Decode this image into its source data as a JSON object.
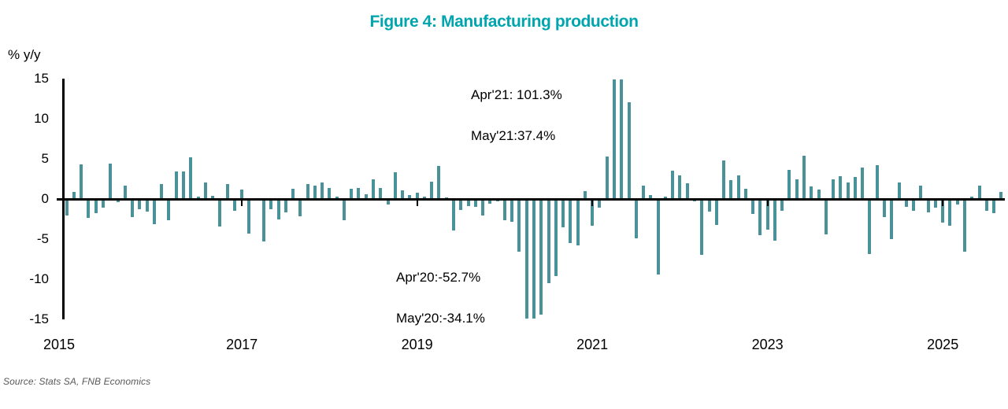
{
  "title": "Figure 4: Manufacturing production",
  "source_note": "Source: Stats SA, FNB Economics",
  "colors": {
    "title_teal": "#00a5ad",
    "bar_teal": "#4a9299",
    "axis_black": "#000000",
    "source_gray": "#57585a"
  },
  "annotations": {
    "peak_line1": "Apr'21: 101.3%",
    "peak_line2": "May'21:37.4%",
    "trough_line1": "Apr'20:-52.7%",
    "trough_line2": "May'20:-34.1%"
  },
  "chart_data": {
    "type": "bar",
    "title": "Figure 4: Manufacturing production",
    "ylabel": "% y/y",
    "ylim": [
      -15,
      15
    ],
    "y_ticks": [
      "15",
      "10",
      "5",
      "0",
      "-5",
      "-10",
      "-15"
    ],
    "y_tick_values": [
      15,
      10,
      5,
      0,
      -5,
      -10,
      -15
    ],
    "x_ticks": [
      {
        "label": "2015",
        "month_index": 0
      },
      {
        "label": "2017",
        "month_index": 24
      },
      {
        "label": "2019",
        "month_index": 48
      },
      {
        "label": "2021",
        "month_index": 72
      },
      {
        "label": "2023",
        "month_index": 96
      },
      {
        "label": "2025",
        "month_index": 120
      }
    ],
    "frequency": "monthly",
    "start": "2015-01",
    "end": "2025-09",
    "clip_display_at": 14.9,
    "grid": false,
    "legend": "none",
    "values": [
      -2.1,
      0.9,
      4.3,
      -2.4,
      -1.8,
      -1.1,
      4.4,
      -0.4,
      1.7,
      -2.3,
      -1.3,
      -1.6,
      -3.1,
      1.9,
      -2.6,
      3.4,
      3.4,
      5.2,
      0.3,
      2.1,
      0.4,
      -3.4,
      1.9,
      -1.5,
      1.2,
      -4.3,
      -0.1,
      -5.3,
      -1.3,
      -2.5,
      -1.7,
      1.3,
      -2.2,
      1.9,
      1.7,
      2.1,
      1.4,
      0.3,
      -2.6,
      1.3,
      1.4,
      0.6,
      2.5,
      1.4,
      -0.7,
      3.3,
      1.1,
      0.5,
      0.8,
      0.3,
      2.2,
      4.1,
      0.2,
      -3.9,
      -1.4,
      -0.9,
      -1.0,
      -2.1,
      -0.6,
      -0.3,
      -2.6,
      -2.8,
      -6.6,
      -52.7,
      -34.1,
      -14.4,
      -10.5,
      -9.6,
      -3.5,
      -5.5,
      -5.8,
      1.0,
      -3.3,
      -1.1,
      5.3,
      101.3,
      37.4,
      12.1,
      -4.9,
      1.7,
      0.5,
      -9.4,
      0.3,
      3.5,
      2.9,
      2.0,
      -0.3,
      -7.0,
      -1.6,
      -3.2,
      4.8,
      2.4,
      2.9,
      1.3,
      -1.9,
      -4.5,
      -3.8,
      -5.2,
      -1.5,
      3.6,
      2.5,
      5.4,
      1.6,
      1.2,
      -4.4,
      2.5,
      2.8,
      2.1,
      2.7,
      3.9,
      -6.9,
      4.2,
      -2.3,
      -5.0,
      2.1,
      -1.0,
      -1.5,
      1.7,
      -1.7,
      -1.1,
      -2.9,
      -3.3,
      -0.7,
      -6.6,
      0.3,
      1.7,
      -1.5,
      -1.8,
      0.9
    ],
    "annotations": [
      {
        "text_line1": "Apr'21: 101.3%",
        "text_line2": "May'21:37.4%",
        "refers_to": [
          "2021-04",
          "2021-05"
        ]
      },
      {
        "text_line1": "Apr'20:-52.7%",
        "text_line2": "May'20:-34.1%",
        "refers_to": [
          "2020-04",
          "2020-05"
        ]
      }
    ]
  }
}
